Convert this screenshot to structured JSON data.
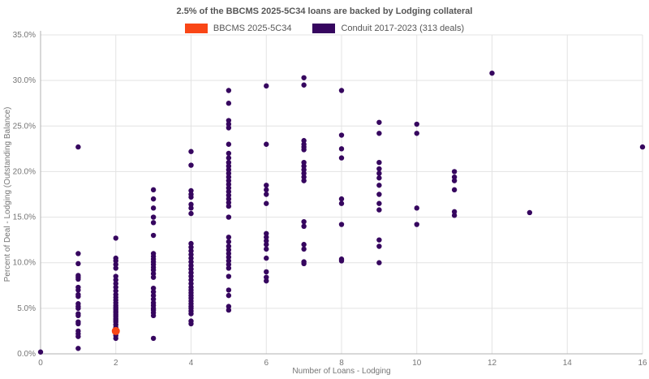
{
  "title": "2.5% of the BBCMS 2025-5C34 loans are backed by Lodging collateral",
  "legend": [
    {
      "label": "BBCMS 2025-5C34",
      "color": "#f94616"
    },
    {
      "label": "Conduit 2017-2023 (313 deals)",
      "color": "#36065f"
    }
  ],
  "chart_data": {
    "type": "scatter",
    "title": "2.5% of the BBCMS 2025-5C34 loans are backed by Lodging collateral",
    "xlabel": "Number of Loans - Lodging",
    "ylabel": "Percent of Deal - Lodging (Outstanding Balance)",
    "xlim": [
      0,
      16
    ],
    "ylim": [
      0,
      35
    ],
    "x_ticks": [
      0,
      2,
      4,
      6,
      8,
      10,
      12,
      14,
      16
    ],
    "x_tick_labels": [
      "0",
      "2",
      "4",
      "6",
      "8",
      "10",
      "12",
      "14",
      "16"
    ],
    "y_ticks": [
      0,
      5,
      10,
      15,
      20,
      25,
      30,
      35
    ],
    "y_tick_labels": [
      "0.0%",
      "5.0%",
      "10.0%",
      "15.0%",
      "20.0%",
      "25.0%",
      "30.0%",
      "35.0%"
    ],
    "grid": true,
    "grid_color": "#e3e3e3",
    "axis_color": "#b0b0b0",
    "tick_text_color": "#757575",
    "series": [
      {
        "name": "BBCMS 2025-5C34",
        "color": "#f94616",
        "marker_size": 5,
        "points": [
          [
            2,
            2.5
          ]
        ]
      },
      {
        "name": "Conduit 2017-2023 (313 deals)",
        "color": "#36065f",
        "marker_size": 3.2,
        "points": [
          [
            0,
            0.2
          ],
          [
            1,
            0.6
          ],
          [
            1,
            1.9
          ],
          [
            1,
            2.2
          ],
          [
            1,
            2.5
          ],
          [
            1,
            3.3
          ],
          [
            1,
            3.5
          ],
          [
            1,
            4.2
          ],
          [
            1,
            4.4
          ],
          [
            1,
            5.0
          ],
          [
            1,
            5.2
          ],
          [
            1,
            5.5
          ],
          [
            1,
            6.3
          ],
          [
            1,
            6.5
          ],
          [
            1,
            7.0
          ],
          [
            1,
            7.3
          ],
          [
            1,
            8.2
          ],
          [
            1,
            8.4
          ],
          [
            1,
            8.6
          ],
          [
            1,
            9.9
          ],
          [
            1,
            11.0
          ],
          [
            1,
            22.7
          ],
          [
            2,
            1.7
          ],
          [
            2,
            2.0
          ],
          [
            2,
            2.9
          ],
          [
            2,
            3.2
          ],
          [
            2,
            3.5
          ],
          [
            2,
            3.7
          ],
          [
            2,
            3.9
          ],
          [
            2,
            4.1
          ],
          [
            2,
            4.3
          ],
          [
            2,
            4.5
          ],
          [
            2,
            4.7
          ],
          [
            2,
            4.9
          ],
          [
            2,
            5.1
          ],
          [
            2,
            5.3
          ],
          [
            2,
            5.6
          ],
          [
            2,
            5.9
          ],
          [
            2,
            6.2
          ],
          [
            2,
            6.5
          ],
          [
            2,
            6.9
          ],
          [
            2,
            7.3
          ],
          [
            2,
            7.7
          ],
          [
            2,
            8.1
          ],
          [
            2,
            8.5
          ],
          [
            2,
            9.4
          ],
          [
            2,
            9.8
          ],
          [
            2,
            10.2
          ],
          [
            2,
            10.5
          ],
          [
            2,
            12.7
          ],
          [
            3,
            1.7
          ],
          [
            3,
            4.2
          ],
          [
            3,
            4.5
          ],
          [
            3,
            4.8
          ],
          [
            3,
            5.0
          ],
          [
            3,
            5.3
          ],
          [
            3,
            5.6
          ],
          [
            3,
            6.0
          ],
          [
            3,
            6.4
          ],
          [
            3,
            6.8
          ],
          [
            3,
            7.2
          ],
          [
            3,
            8.4
          ],
          [
            3,
            8.8
          ],
          [
            3,
            9.2
          ],
          [
            3,
            9.5
          ],
          [
            3,
            9.8
          ],
          [
            3,
            10.1
          ],
          [
            3,
            10.4
          ],
          [
            3,
            10.7
          ],
          [
            3,
            11.0
          ],
          [
            3,
            13.0
          ],
          [
            3,
            14.4
          ],
          [
            3,
            15.0
          ],
          [
            3,
            16.0
          ],
          [
            3,
            17.0
          ],
          [
            3,
            18.0
          ],
          [
            4,
            3.3
          ],
          [
            4,
            3.6
          ],
          [
            4,
            4.4
          ],
          [
            4,
            4.7
          ],
          [
            4,
            5.0
          ],
          [
            4,
            5.2
          ],
          [
            4,
            5.5
          ],
          [
            4,
            5.8
          ],
          [
            4,
            6.1
          ],
          [
            4,
            6.4
          ],
          [
            4,
            6.7
          ],
          [
            4,
            7.0
          ],
          [
            4,
            7.3
          ],
          [
            4,
            7.7
          ],
          [
            4,
            8.1
          ],
          [
            4,
            8.5
          ],
          [
            4,
            8.9
          ],
          [
            4,
            9.3
          ],
          [
            4,
            9.7
          ],
          [
            4,
            10.1
          ],
          [
            4,
            10.5
          ],
          [
            4,
            10.9
          ],
          [
            4,
            11.3
          ],
          [
            4,
            11.7
          ],
          [
            4,
            12.1
          ],
          [
            4,
            15.4
          ],
          [
            4,
            16.0
          ],
          [
            4,
            16.4
          ],
          [
            4,
            17.2
          ],
          [
            4,
            17.5
          ],
          [
            4,
            17.9
          ],
          [
            4,
            20.7
          ],
          [
            4,
            22.2
          ],
          [
            5,
            4.8
          ],
          [
            5,
            5.2
          ],
          [
            5,
            6.4
          ],
          [
            5,
            7.0
          ],
          [
            5,
            8.5
          ],
          [
            5,
            9.4
          ],
          [
            5,
            9.8
          ],
          [
            5,
            10.2
          ],
          [
            5,
            10.6
          ],
          [
            5,
            11.0
          ],
          [
            5,
            11.4
          ],
          [
            5,
            11.8
          ],
          [
            5,
            12.3
          ],
          [
            5,
            12.8
          ],
          [
            5,
            15.0
          ],
          [
            5,
            16.2
          ],
          [
            5,
            16.6
          ],
          [
            5,
            17.0
          ],
          [
            5,
            17.4
          ],
          [
            5,
            17.8
          ],
          [
            5,
            18.2
          ],
          [
            5,
            18.6
          ],
          [
            5,
            19.0
          ],
          [
            5,
            19.4
          ],
          [
            5,
            19.8
          ],
          [
            5,
            20.2
          ],
          [
            5,
            20.6
          ],
          [
            5,
            21.0
          ],
          [
            5,
            21.5
          ],
          [
            5,
            22.0
          ],
          [
            5,
            23.0
          ],
          [
            5,
            24.8
          ],
          [
            5,
            25.2
          ],
          [
            5,
            25.6
          ],
          [
            5,
            27.5
          ],
          [
            5,
            28.9
          ],
          [
            6,
            8.0
          ],
          [
            6,
            8.4
          ],
          [
            6,
            9.0
          ],
          [
            6,
            10.5
          ],
          [
            6,
            11.5
          ],
          [
            6,
            12.0
          ],
          [
            6,
            12.4
          ],
          [
            6,
            12.8
          ],
          [
            6,
            13.2
          ],
          [
            6,
            16.5
          ],
          [
            6,
            17.5
          ],
          [
            6,
            18.0
          ],
          [
            6,
            18.5
          ],
          [
            6,
            23.0
          ],
          [
            6,
            29.4
          ],
          [
            7,
            9.9
          ],
          [
            7,
            10.1
          ],
          [
            7,
            11.5
          ],
          [
            7,
            12.0
          ],
          [
            7,
            14.0
          ],
          [
            7,
            14.5
          ],
          [
            7,
            19.0
          ],
          [
            7,
            19.4
          ],
          [
            7,
            19.8
          ],
          [
            7,
            20.2
          ],
          [
            7,
            20.6
          ],
          [
            7,
            21.0
          ],
          [
            7,
            22.4
          ],
          [
            7,
            22.7
          ],
          [
            7,
            23.0
          ],
          [
            7,
            23.4
          ],
          [
            7,
            29.5
          ],
          [
            7,
            30.3
          ],
          [
            8,
            10.2
          ],
          [
            8,
            10.4
          ],
          [
            8,
            14.2
          ],
          [
            8,
            16.5
          ],
          [
            8,
            17.0
          ],
          [
            8,
            21.5
          ],
          [
            8,
            22.5
          ],
          [
            8,
            24.0
          ],
          [
            8,
            28.9
          ],
          [
            9,
            10.0
          ],
          [
            9,
            11.8
          ],
          [
            9,
            12.5
          ],
          [
            9,
            15.8
          ],
          [
            9,
            16.5
          ],
          [
            9,
            17.5
          ],
          [
            9,
            18.5
          ],
          [
            9,
            19.3
          ],
          [
            9,
            19.8
          ],
          [
            9,
            20.3
          ],
          [
            9,
            21.0
          ],
          [
            9,
            24.2
          ],
          [
            9,
            25.4
          ],
          [
            10,
            14.2
          ],
          [
            10,
            16.0
          ],
          [
            10,
            24.2
          ],
          [
            10,
            25.2
          ],
          [
            11,
            15.2
          ],
          [
            11,
            15.6
          ],
          [
            11,
            18.0
          ],
          [
            11,
            19.0
          ],
          [
            11,
            19.4
          ],
          [
            11,
            20.0
          ],
          [
            12,
            30.8
          ],
          [
            13,
            15.5
          ],
          [
            16,
            22.7
          ]
        ]
      }
    ]
  }
}
